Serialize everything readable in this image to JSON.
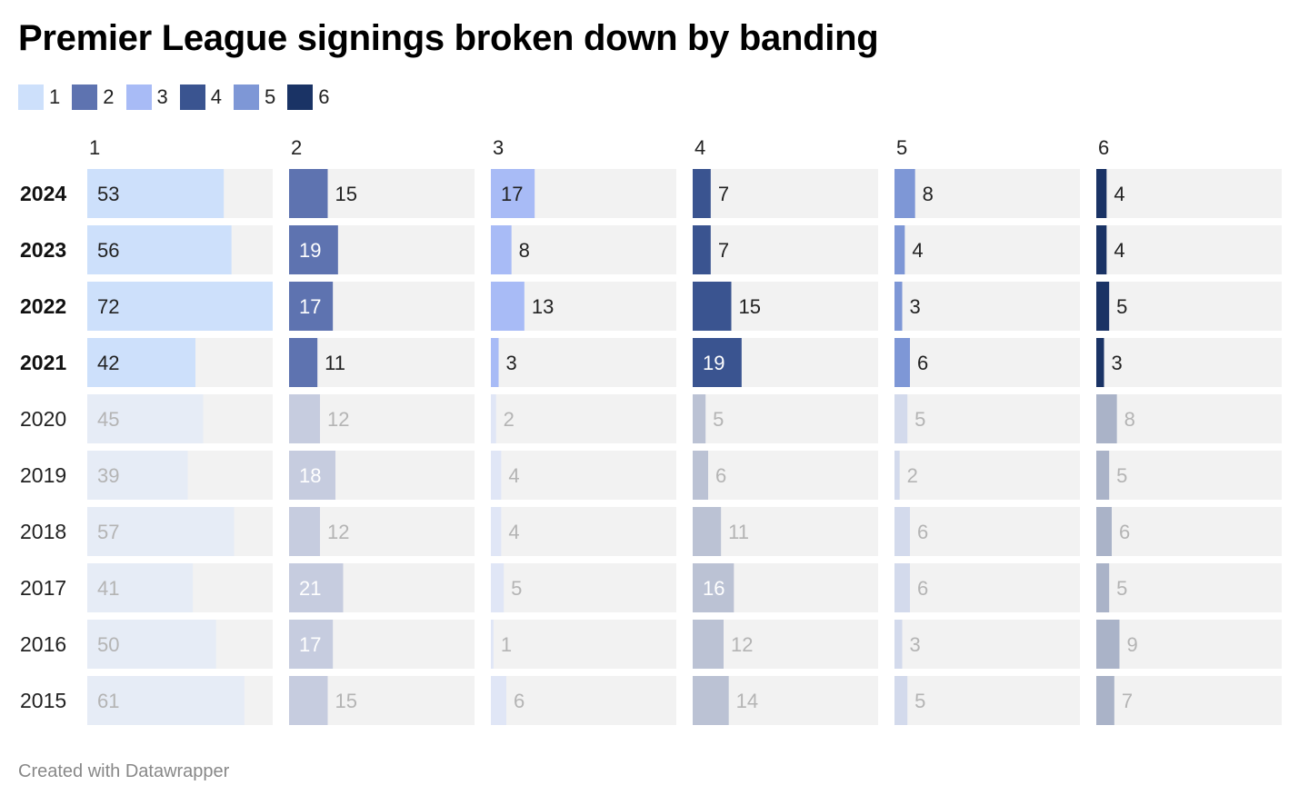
{
  "title": "Premier League signings broken down by banding",
  "footer": "Created with Datawrapper",
  "colors": {
    "panel_bg": "#f2f2f2",
    "band_active": [
      "#cde0fb",
      "#5e73b0",
      "#a8bbf6",
      "#3a5490",
      "#7e97d6",
      "#1a3365"
    ],
    "band_faded": [
      "#e6ecf6",
      "#c6ccdf",
      "#e0e6f6",
      "#bbc2d4",
      "#d3daec",
      "#aab3c8"
    ],
    "label_dark": "#222222",
    "label_faded": "#b4b4b4",
    "label_inside_light": "#ffffff",
    "year_bold_color": "#111111",
    "year_normal_color": "#222222"
  },
  "legend": [
    {
      "label": "1",
      "color": "#cde0fb"
    },
    {
      "label": "2",
      "color": "#5e73b0"
    },
    {
      "label": "3",
      "color": "#a8bbf6"
    },
    {
      "label": "4",
      "color": "#3a5490"
    },
    {
      "label": "5",
      "color": "#7e97d6"
    },
    {
      "label": "6",
      "color": "#1a3365"
    }
  ],
  "chart_data": {
    "type": "bar",
    "categories": [
      "2024",
      "2023",
      "2022",
      "2021",
      "2020",
      "2019",
      "2018",
      "2017",
      "2016",
      "2015"
    ],
    "highlighted_categories": [
      "2024",
      "2023",
      "2022",
      "2021"
    ],
    "xlim": [
      0,
      72
    ],
    "series": [
      {
        "name": "1",
        "values": [
          53,
          56,
          72,
          42,
          45,
          39,
          57,
          41,
          50,
          61
        ]
      },
      {
        "name": "2",
        "values": [
          15,
          19,
          17,
          11,
          12,
          18,
          12,
          21,
          17,
          15
        ]
      },
      {
        "name": "3",
        "values": [
          17,
          8,
          13,
          3,
          2,
          4,
          4,
          5,
          1,
          6
        ]
      },
      {
        "name": "4",
        "values": [
          7,
          7,
          15,
          19,
          5,
          6,
          11,
          16,
          12,
          14
        ]
      },
      {
        "name": "5",
        "values": [
          8,
          4,
          3,
          6,
          5,
          2,
          6,
          6,
          3,
          5
        ]
      },
      {
        "name": "6",
        "values": [
          4,
          4,
          5,
          3,
          8,
          5,
          6,
          5,
          9,
          7
        ]
      }
    ]
  }
}
